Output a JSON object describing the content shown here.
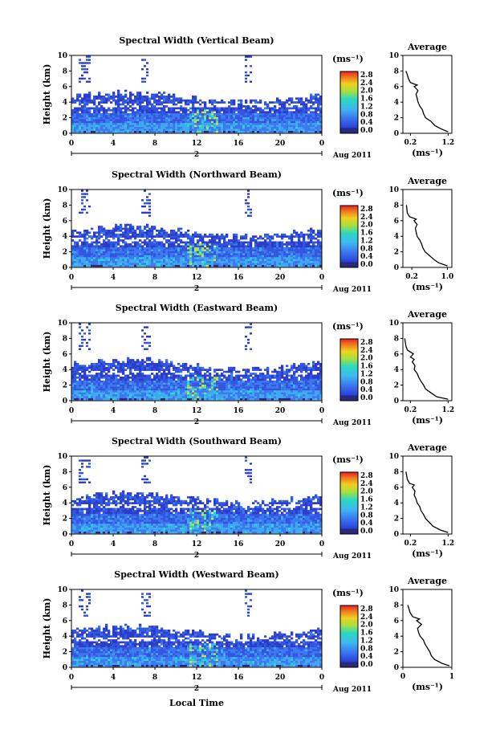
{
  "figure": {
    "xlabel": "Local Time",
    "date_label": "Aug 2011",
    "day_label": "2",
    "colorbar_unit": "(ms⁻¹)",
    "avg_title": "Average",
    "avg_xlabel": "(ms⁻¹)",
    "ylabel": "Height (km)"
  },
  "chart_data": [
    {
      "type": "heatmap",
      "title": "Spectral Width (Vertical Beam)",
      "ylabel": "Height (km)",
      "x_ticks": [
        "0",
        "4",
        "8",
        "12",
        "16",
        "20",
        "0"
      ],
      "y_ticks": [
        "0",
        "2",
        "4",
        "6",
        "8",
        "10"
      ],
      "xlim": [
        0,
        24
      ],
      "ylim": [
        0,
        10
      ],
      "colorbar_ticks": [
        "2.8",
        "2.4",
        "2.0",
        "1.6",
        "1.2",
        "0.8",
        "0.4",
        "0.0"
      ],
      "average": {
        "title": "Average",
        "x_ticks": [
          "0.2",
          "1.2"
        ],
        "y_ticks": [
          "0",
          "2",
          "4",
          "6",
          "8",
          "10"
        ],
        "xlim": [
          0.0,
          1.3
        ],
        "points": [
          [
            1.2,
            0.2
          ],
          [
            1.0,
            0.6
          ],
          [
            0.85,
            1.0
          ],
          [
            0.75,
            1.5
          ],
          [
            0.6,
            2.0
          ],
          [
            0.55,
            2.5
          ],
          [
            0.52,
            3.0
          ],
          [
            0.45,
            3.5
          ],
          [
            0.4,
            4.0
          ],
          [
            0.38,
            4.5
          ],
          [
            0.35,
            5.0
          ],
          [
            0.4,
            5.5
          ],
          [
            0.3,
            6.0
          ],
          [
            0.38,
            6.2
          ],
          [
            0.2,
            6.5
          ],
          [
            0.15,
            7.0
          ],
          [
            0.12,
            7.5
          ],
          [
            0.08,
            8.0
          ]
        ]
      }
    },
    {
      "type": "heatmap",
      "title": "Spectral Width (Northward Beam)",
      "ylabel": "Height (km)",
      "x_ticks": [
        "0",
        "4",
        "8",
        "12",
        "16",
        "20",
        "0"
      ],
      "y_ticks": [
        "0",
        "2",
        "4",
        "6",
        "8",
        "10"
      ],
      "xlim": [
        0,
        24
      ],
      "ylim": [
        0,
        10
      ],
      "colorbar_ticks": [
        "2.8",
        "2.4",
        "2.0",
        "1.6",
        "1.2",
        "0.8",
        "0.4",
        "0.0"
      ],
      "average": {
        "title": "Average",
        "x_ticks": [
          "0.2",
          "1.0"
        ],
        "y_ticks": [
          "0",
          "2",
          "4",
          "6",
          "8",
          "10"
        ],
        "xlim": [
          0.0,
          1.1
        ],
        "points": [
          [
            1.0,
            0.2
          ],
          [
            0.8,
            0.6
          ],
          [
            0.7,
            1.0
          ],
          [
            0.6,
            1.5
          ],
          [
            0.5,
            2.0
          ],
          [
            0.45,
            2.5
          ],
          [
            0.42,
            3.0
          ],
          [
            0.38,
            3.5
          ],
          [
            0.32,
            4.0
          ],
          [
            0.3,
            4.5
          ],
          [
            0.28,
            5.0
          ],
          [
            0.32,
            5.5
          ],
          [
            0.25,
            6.0
          ],
          [
            0.3,
            6.2
          ],
          [
            0.15,
            6.5
          ],
          [
            0.1,
            7.0
          ],
          [
            0.08,
            8.0
          ]
        ]
      }
    },
    {
      "type": "heatmap",
      "title": "Spectral Width (Eastward Beam)",
      "ylabel": "Height (km)",
      "x_ticks": [
        "0",
        "4",
        "8",
        "12",
        "16",
        "20",
        "0"
      ],
      "y_ticks": [
        "0",
        "2",
        "4",
        "6",
        "8",
        "10"
      ],
      "xlim": [
        0,
        24
      ],
      "ylim": [
        0,
        10
      ],
      "colorbar_ticks": [
        "2.8",
        "2.4",
        "2.0",
        "1.6",
        "1.2",
        "0.8",
        "0.4",
        "0.0"
      ],
      "average": {
        "title": "Average",
        "x_ticks": [
          "0.2",
          "1.2"
        ],
        "y_ticks": [
          "0",
          "2",
          "4",
          "6",
          "8",
          "10"
        ],
        "xlim": [
          0.0,
          1.3
        ],
        "points": [
          [
            1.2,
            0.2
          ],
          [
            0.9,
            0.5
          ],
          [
            0.75,
            1.0
          ],
          [
            0.6,
            1.5
          ],
          [
            0.55,
            2.0
          ],
          [
            0.48,
            2.5
          ],
          [
            0.42,
            3.0
          ],
          [
            0.38,
            3.5
          ],
          [
            0.3,
            4.0
          ],
          [
            0.32,
            4.5
          ],
          [
            0.25,
            5.0
          ],
          [
            0.3,
            5.3
          ],
          [
            0.2,
            5.6
          ],
          [
            0.28,
            6.0
          ],
          [
            0.12,
            6.5
          ],
          [
            0.08,
            7.0
          ],
          [
            0.05,
            8.0
          ]
        ]
      }
    },
    {
      "type": "heatmap",
      "title": "Spectral Width (Southward Beam)",
      "ylabel": "Height (km)",
      "x_ticks": [
        "0",
        "4",
        "8",
        "12",
        "16",
        "20",
        "0"
      ],
      "y_ticks": [
        "0",
        "2",
        "4",
        "6",
        "8",
        "10"
      ],
      "xlim": [
        0,
        24
      ],
      "ylim": [
        0,
        10
      ],
      "colorbar_ticks": [
        "2.8",
        "2.4",
        "2.0",
        "1.6",
        "1.2",
        "0.8",
        "0.4",
        "0.0"
      ],
      "average": {
        "title": "Average",
        "x_ticks": [
          "0.2",
          "1.2"
        ],
        "y_ticks": [
          "0",
          "2",
          "4",
          "6",
          "8",
          "10"
        ],
        "xlim": [
          0.0,
          1.3
        ],
        "points": [
          [
            1.2,
            0.2
          ],
          [
            1.0,
            0.5
          ],
          [
            0.8,
            1.0
          ],
          [
            0.7,
            1.5
          ],
          [
            0.6,
            2.0
          ],
          [
            0.55,
            2.5
          ],
          [
            0.48,
            3.0
          ],
          [
            0.45,
            3.5
          ],
          [
            0.38,
            4.0
          ],
          [
            0.35,
            4.5
          ],
          [
            0.3,
            5.0
          ],
          [
            0.32,
            5.5
          ],
          [
            0.25,
            6.0
          ],
          [
            0.3,
            6.3
          ],
          [
            0.18,
            6.5
          ],
          [
            0.12,
            7.0
          ],
          [
            0.08,
            8.0
          ]
        ]
      }
    },
    {
      "type": "heatmap",
      "title": "Spectral Width (Westward Beam)",
      "ylabel": "Height (km)",
      "x_ticks": [
        "0",
        "4",
        "8",
        "12",
        "16",
        "20",
        "0"
      ],
      "y_ticks": [
        "0",
        "2",
        "4",
        "6",
        "8",
        "10"
      ],
      "xlim": [
        0,
        24
      ],
      "ylim": [
        0,
        10
      ],
      "colorbar_ticks": [
        "2.8",
        "2.4",
        "2.0",
        "1.6",
        "1.2",
        "0.8",
        "0.4",
        "0.0"
      ],
      "average": {
        "title": "Average",
        "x_ticks": [
          "0",
          "1"
        ],
        "y_ticks": [
          "0",
          "2",
          "4",
          "6",
          "8",
          "10"
        ],
        "xlim": [
          0.0,
          1.0
        ],
        "points": [
          [
            0.95,
            0.2
          ],
          [
            0.8,
            0.5
          ],
          [
            0.65,
            1.0
          ],
          [
            0.58,
            1.5
          ],
          [
            0.55,
            2.0
          ],
          [
            0.5,
            2.5
          ],
          [
            0.45,
            3.0
          ],
          [
            0.42,
            3.5
          ],
          [
            0.35,
            4.0
          ],
          [
            0.32,
            4.5
          ],
          [
            0.3,
            5.0
          ],
          [
            0.38,
            5.5
          ],
          [
            0.28,
            6.0
          ],
          [
            0.34,
            6.2
          ],
          [
            0.2,
            6.5
          ],
          [
            0.15,
            7.0
          ],
          [
            0.1,
            8.0
          ]
        ]
      }
    }
  ]
}
